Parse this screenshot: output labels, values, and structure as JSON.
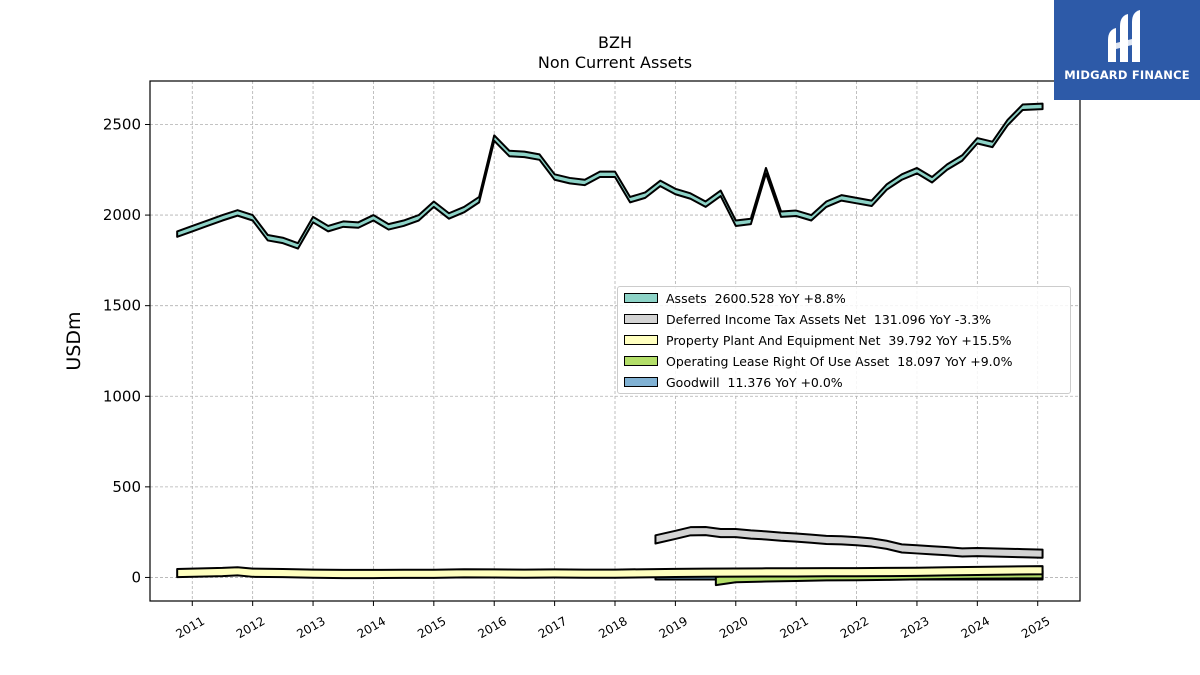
{
  "chart_data": {
    "type": "area",
    "title": "BZH",
    "subtitle": "Non Current  Assets",
    "ylabel": "USDm",
    "xlabel": "",
    "xlim": [
      2010.3,
      2025.7
    ],
    "ylim": [
      -130,
      2740
    ],
    "x_ticks": [
      "2011",
      "2012",
      "2013",
      "2014",
      "2015",
      "2016",
      "2017",
      "2018",
      "2019",
      "2020",
      "2021",
      "2022",
      "2023",
      "2024",
      "2025"
    ],
    "y_ticks": [
      0,
      500,
      1000,
      1500,
      2000,
      2500
    ],
    "grid": true,
    "legend_position": "center-right",
    "series": [
      {
        "name": "Assets",
        "legend": "Assets  2600.528 YoY +8.8%",
        "color": "#8dd3c7",
        "width": 30,
        "x": [
          2010.75,
          2011.0,
          2011.25,
          2011.5,
          2011.75,
          2012.0,
          2012.25,
          2012.5,
          2012.75,
          2013.0,
          2013.25,
          2013.5,
          2013.75,
          2014.0,
          2014.25,
          2014.5,
          2014.75,
          2015.0,
          2015.25,
          2015.5,
          2015.75,
          2016.0,
          2016.25,
          2016.5,
          2016.75,
          2017.0,
          2017.25,
          2017.5,
          2017.75,
          2018.0,
          2018.25,
          2018.5,
          2018.75,
          2019.0,
          2019.25,
          2019.5,
          2019.75,
          2020.0,
          2020.25,
          2020.5,
          2020.75,
          2021.0,
          2021.25,
          2021.5,
          2021.75,
          2022.0,
          2022.25,
          2022.5,
          2022.75,
          2023.0,
          2023.25,
          2023.5,
          2023.75,
          2024.0,
          2024.25,
          2024.5,
          2024.75,
          2025.08
        ],
        "values": [
          1895,
          1925,
          1955,
          1985,
          2012,
          1985,
          1875,
          1860,
          1830,
          1975,
          1925,
          1950,
          1945,
          1985,
          1935,
          1955,
          1985,
          2060,
          1995,
          2030,
          2085,
          2425,
          2340,
          2335,
          2320,
          2210,
          2190,
          2180,
          2225,
          2225,
          2085,
          2110,
          2175,
          2130,
          2105,
          2060,
          2120,
          1955,
          1965,
          2245,
          2005,
          2010,
          1985,
          2060,
          2095,
          2080,
          2065,
          2155,
          2210,
          2245,
          2195,
          2265,
          2315,
          2410,
          2390,
          2510,
          2595,
          2600
        ]
      },
      {
        "name": "Deferred Income Tax Assets Net",
        "legend": "Deferred Income Tax Assets Net  131.096 YoY -3.3%",
        "color": "#d3d3d3",
        "width": 45,
        "x": [
          2018.67,
          2019.0,
          2019.25,
          2019.5,
          2019.75,
          2020.0,
          2020.25,
          2020.5,
          2020.75,
          2021.0,
          2021.25,
          2021.5,
          2021.75,
          2022.0,
          2022.25,
          2022.5,
          2022.75,
          2023.0,
          2023.25,
          2023.5,
          2023.75,
          2024.0,
          2024.25,
          2024.5,
          2024.75,
          2025.08
        ],
        "values": [
          210,
          235,
          255,
          256,
          245,
          245,
          237,
          232,
          225,
          220,
          214,
          207,
          205,
          200,
          193,
          180,
          160,
          155,
          150,
          145,
          138,
          140,
          138,
          136,
          134,
          131
        ]
      },
      {
        "name": "Property Plant And Equipment Net",
        "legend": "Property Plant And Equipment Net  39.792 YoY +15.5%",
        "color": "#ffffbf",
        "width": 45,
        "x": [
          2010.75,
          2011.5,
          2011.75,
          2012.0,
          2012.5,
          2013.0,
          2013.5,
          2014.0,
          2014.5,
          2015.0,
          2015.5,
          2016.0,
          2016.5,
          2017.0,
          2017.5,
          2018.0,
          2018.5,
          2019.0,
          2019.5,
          2020.0,
          2020.5,
          2021.0,
          2021.5,
          2022.0,
          2022.5,
          2023.0,
          2023.5,
          2024.0,
          2024.5,
          2025.08
        ],
        "values": [
          24,
          30,
          34,
          26,
          24,
          21,
          19,
          19,
          20,
          20,
          23,
          22,
          21,
          22,
          21,
          21,
          23,
          25,
          26,
          27,
          28,
          28,
          29,
          29,
          30,
          31,
          34,
          36,
          38,
          40
        ]
      },
      {
        "name": "Operating Lease Right Of Use Asset",
        "legend": "Operating Lease Right Of Use Asset  18.097 YoY +9.0%",
        "color": "#b3de69",
        "width": 45,
        "x": [
          2019.67,
          2020.0,
          2020.5,
          2021.0,
          2021.5,
          2022.0,
          2022.5,
          2023.0,
          2023.5,
          2024.0,
          2024.5,
          2025.08
        ],
        "values": [
          -20,
          -4,
          0,
          3,
          6,
          7,
          9,
          12,
          14,
          16,
          17,
          18
        ]
      },
      {
        "name": "Goodwill",
        "legend": "Goodwill  11.376 YoY +0.0%",
        "color": "#80b1d3",
        "width": 45,
        "x": [
          2018.67,
          2025.08
        ],
        "values": [
          11.376,
          11.376
        ]
      }
    ]
  },
  "logo": {
    "text": "MIDGARD FINANCE",
    "bg_color": "#2d5aa8",
    "fg_color": "#ffffff"
  }
}
